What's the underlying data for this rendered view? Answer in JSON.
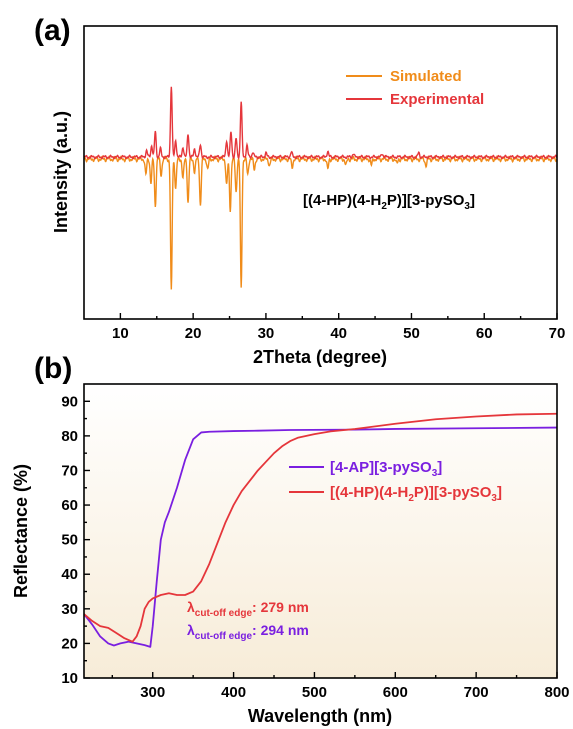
{
  "chart_data": [
    {
      "panel_label": "(a)",
      "type": "line",
      "xlabel": "2Theta (degree)",
      "ylabel": "Intensity (a.u.)",
      "xlim": [
        5,
        70
      ],
      "xticks": [
        10,
        20,
        30,
        40,
        50,
        60,
        70
      ],
      "y_axis_ticks": false,
      "annotation": {
        "base": "[(4-HP)(4-H",
        "sub1": "2",
        "mid": "P)][3-pySO",
        "sub2": "3",
        "end": "]"
      },
      "legend_position": "top-right",
      "series": [
        {
          "name": "Simulated",
          "color": "#f08c1a",
          "direction": "down",
          "baseline": 0,
          "peaks": [
            [
              13.5,
              0.12
            ],
            [
              14.2,
              0.18
            ],
            [
              14.8,
              0.35
            ],
            [
              15.6,
              0.12
            ],
            [
              17.0,
              1.0
            ],
            [
              17.6,
              0.22
            ],
            [
              18.6,
              0.15
            ],
            [
              19.3,
              0.33
            ],
            [
              20.2,
              0.1
            ],
            [
              21.0,
              0.35
            ],
            [
              22.0,
              0.08
            ],
            [
              24.6,
              0.2
            ],
            [
              25.1,
              0.38
            ],
            [
              25.9,
              0.25
            ],
            [
              26.6,
              0.98
            ],
            [
              27.5,
              0.12
            ],
            [
              28.4,
              0.08
            ],
            [
              30.5,
              0.05
            ],
            [
              33.6,
              0.06
            ],
            [
              38.5,
              0.08
            ],
            [
              41.0,
              0.05
            ],
            [
              44.5,
              0.05
            ],
            [
              48.0,
              0.04
            ],
            [
              52.0,
              0.05
            ]
          ]
        },
        {
          "name": "Experimental",
          "color": "#e5363b",
          "direction": "up",
          "baseline": 0,
          "peaks": [
            [
              13.6,
              0.08
            ],
            [
              14.3,
              0.14
            ],
            [
              14.8,
              0.3
            ],
            [
              15.5,
              0.1
            ],
            [
              17.0,
              0.85
            ],
            [
              17.6,
              0.2
            ],
            [
              18.6,
              0.12
            ],
            [
              19.3,
              0.28
            ],
            [
              20.2,
              0.1
            ],
            [
              21.0,
              0.15
            ],
            [
              24.6,
              0.2
            ],
            [
              25.2,
              0.3
            ],
            [
              25.9,
              0.22
            ],
            [
              26.6,
              0.66
            ],
            [
              27.4,
              0.14
            ],
            [
              28.2,
              0.06
            ],
            [
              30.0,
              0.05
            ],
            [
              33.5,
              0.06
            ],
            [
              38.5,
              0.07
            ],
            [
              42.0,
              0.04
            ],
            [
              46.0,
              0.04
            ],
            [
              51.0,
              0.05
            ]
          ]
        }
      ]
    },
    {
      "panel_label": "(b)",
      "type": "line",
      "xlabel": "Wavelength (nm)",
      "ylabel": "Reflectance (%)",
      "xlim": [
        215,
        800
      ],
      "ylim": [
        10,
        95
      ],
      "xticks": [
        300,
        400,
        500,
        600,
        700,
        800
      ],
      "yticks": [
        10,
        20,
        30,
        40,
        50,
        60,
        70,
        80,
        90
      ],
      "legend_position": "center-right",
      "series": [
        {
          "name_base": "[4-AP][3-pySO",
          "name_sub": "3",
          "name_end": "]",
          "color": "#7a1fe0",
          "x": [
            215,
            225,
            235,
            245,
            252,
            260,
            270,
            280,
            290,
            297,
            300,
            305,
            310,
            315,
            320,
            330,
            340,
            350,
            360,
            370,
            400,
            430,
            470,
            550,
            600,
            700,
            800
          ],
          "y": [
            28.5,
            25.5,
            22,
            20,
            19.4,
            20,
            20.5,
            20,
            19.5,
            19,
            25,
            38,
            50,
            55,
            58,
            65,
            73,
            79,
            81,
            81.2,
            81.4,
            81.5,
            81.7,
            81.8,
            82,
            82.2,
            82.4
          ]
        },
        {
          "name_base": "[(4-HP)(4-H",
          "name_sub1": "2",
          "name_mid": "P)][3-pySO",
          "name_sub2": "3",
          "name_end": "]",
          "color": "#e5363b",
          "x": [
            215,
            225,
            235,
            245,
            255,
            265,
            275,
            280,
            285,
            290,
            295,
            300,
            310,
            320,
            330,
            340,
            350,
            360,
            370,
            380,
            390,
            400,
            410,
            420,
            430,
            440,
            450,
            460,
            470,
            480,
            500,
            520,
            550,
            600,
            650,
            700,
            750,
            800
          ],
          "y": [
            28.5,
            26.5,
            25,
            24.5,
            23,
            21.5,
            20.5,
            22,
            25,
            30,
            32,
            33,
            34,
            34.5,
            34,
            34,
            35,
            38,
            43,
            49,
            55,
            60,
            64,
            67,
            70,
            72.5,
            75,
            77,
            78.5,
            79.5,
            80.5,
            81.3,
            82,
            83.5,
            84.8,
            85.6,
            86.2,
            86.4
          ]
        }
      ],
      "annotations": [
        {
          "symbol": "λ",
          "subscript": "cut-off edge",
          "text": ": 279 nm",
          "color": "#e5363b"
        },
        {
          "symbol": "λ",
          "subscript": "cut-off edge",
          "text": ": 294 nm",
          "color": "#7a1fe0"
        }
      ]
    }
  ]
}
